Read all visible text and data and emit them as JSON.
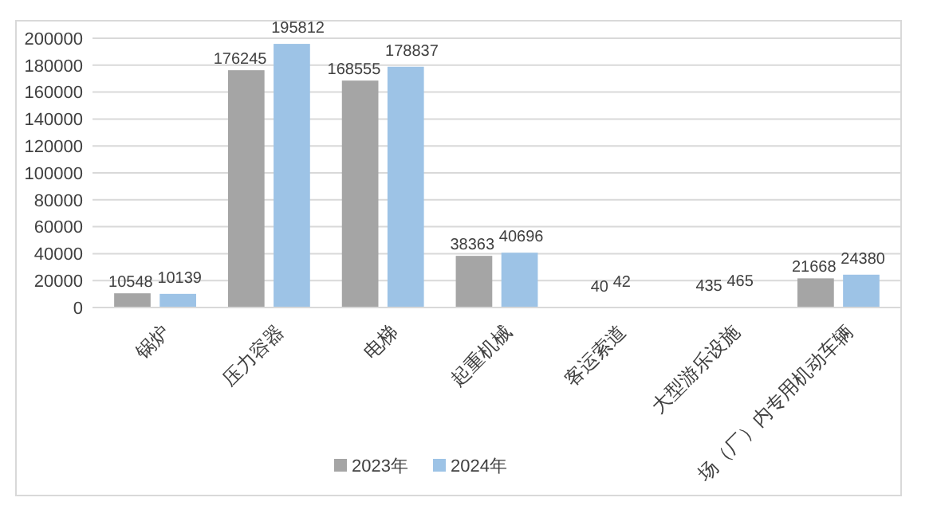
{
  "chart_data": {
    "type": "bar",
    "categories": [
      "锅炉",
      "压力容器",
      "电梯",
      "起重机械",
      "客运索道",
      "大型游乐设施",
      "场（厂）内专用机动车辆"
    ],
    "series": [
      {
        "name": "2023年",
        "color": "#a5a5a5",
        "values": [
          10548,
          176245,
          168555,
          38363,
          40,
          435,
          21668
        ]
      },
      {
        "name": "2024年",
        "color": "#9dc3e6",
        "values": [
          10139,
          195812,
          178837,
          40696,
          42,
          465,
          24380
        ]
      }
    ],
    "ylim": [
      0,
      200000
    ],
    "yticks": [
      0,
      20000,
      40000,
      60000,
      80000,
      100000,
      120000,
      140000,
      160000,
      180000,
      200000
    ],
    "grid": "y",
    "legend": "bottom",
    "data_labels": true
  }
}
